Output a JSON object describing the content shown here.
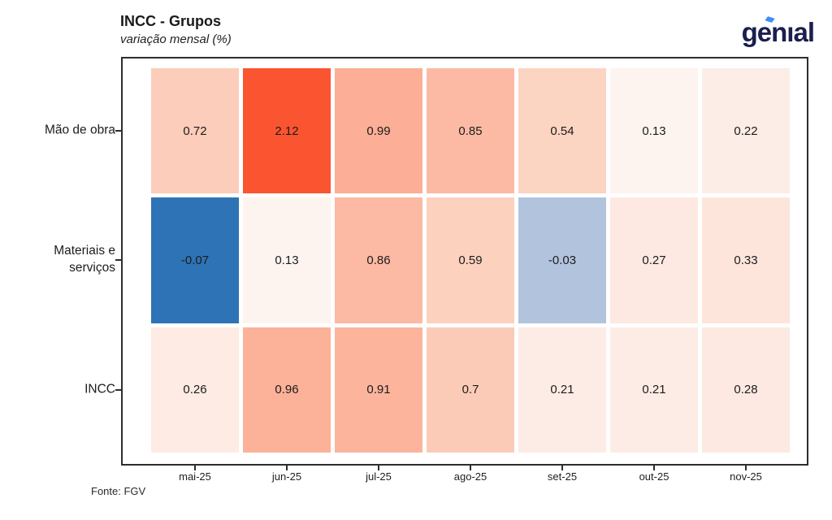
{
  "header": {
    "title": "INCC - Grupos",
    "subtitle": "variação mensal (%)"
  },
  "brand": {
    "name": "genıal",
    "color": "#1b1f4d",
    "accent_color": "#3f8efc"
  },
  "chart_data": {
    "type": "heatmap",
    "title": "INCC - Grupos",
    "subtitle": "variação mensal (%)",
    "x_categories": [
      "mai-25",
      "jun-25",
      "jul-25",
      "ago-25",
      "set-25",
      "out-25",
      "nov-25"
    ],
    "rows": [
      {
        "label": "Mão de obra",
        "values": [
          0.72,
          2.12,
          0.99,
          0.85,
          0.54,
          0.13,
          0.22
        ],
        "colors": [
          "#fbcdba",
          "#fb5430",
          "#fcae96",
          "#fcbaa4",
          "#fcd4c2",
          "#fdf4f0",
          "#fcede6"
        ]
      },
      {
        "label": "Materiais e\nserviços",
        "values": [
          -0.07,
          0.13,
          0.86,
          0.59,
          -0.03,
          0.27,
          0.33
        ],
        "colors": [
          "#2e73b5",
          "#fdf4f0",
          "#fcb9a3",
          "#fcd1be",
          "#b2c3de",
          "#fde9e1",
          "#fde5db"
        ]
      },
      {
        "label": "INCC",
        "values": [
          0.26,
          0.96,
          0.91,
          0.7,
          0.21,
          0.21,
          0.28
        ],
        "colors": [
          "#fdebe4",
          "#fcb199",
          "#fcb49d",
          "#fccbb7",
          "#fdece5",
          "#fdece5",
          "#fde9e2"
        ]
      }
    ],
    "colorscale": {
      "negative_strong": "#2e73b5",
      "negative_weak": "#b2c3de",
      "zero": "#fff7f4",
      "positive_strong": "#fb5430"
    },
    "legend": "none",
    "grid": "off"
  },
  "footer": {
    "source": "Fonte: FGV"
  }
}
